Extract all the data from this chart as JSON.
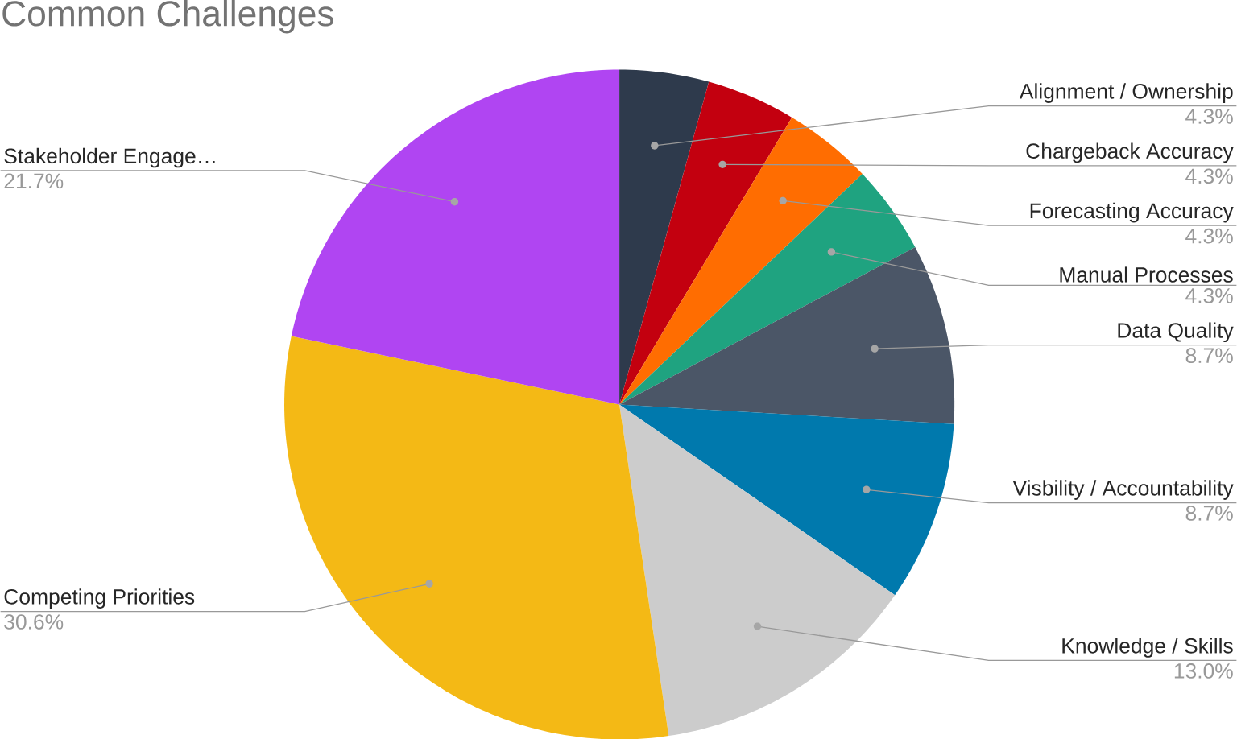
{
  "chart_data": {
    "type": "pie",
    "title": "Common Challenges",
    "categories": [
      "Alignment / Ownership",
      "Chargeback Accuracy",
      "Forecasting Accuracy",
      "Manual Processes",
      "Data Quality",
      "Visbility / Accountability",
      "Knowledge / Skills",
      "Competing Priorities",
      "Stakeholder Engage…"
    ],
    "values": [
      4.3,
      4.3,
      4.3,
      4.3,
      8.7,
      8.7,
      13.0,
      30.6,
      21.7
    ],
    "value_labels": [
      "4.3%",
      "4.3%",
      "4.3%",
      "4.3%",
      "8.7%",
      "8.7%",
      "13.0%",
      "30.6%",
      "21.7%"
    ],
    "colors": [
      "#2e3a4c",
      "#c3000f",
      "#ff6d01",
      "#1fa380",
      "#4b5667",
      "#0079ad",
      "#cccccc",
      "#f4b915",
      "#b045f2"
    ]
  }
}
